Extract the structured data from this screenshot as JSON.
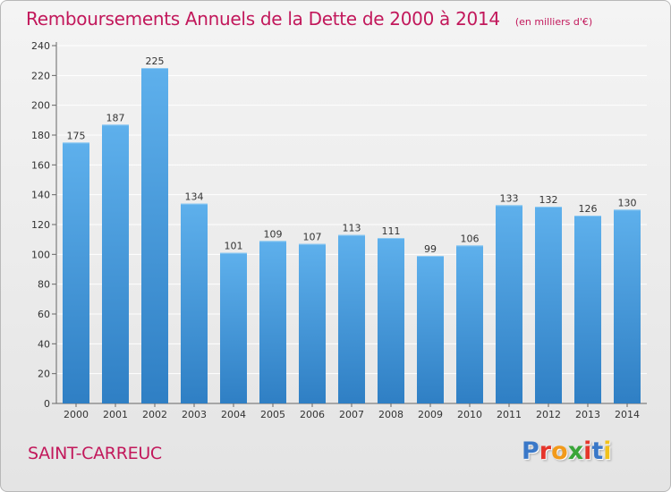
{
  "header": {
    "title": "Remboursements Annuels de la Dette de 2000 à 2014",
    "unit": "(en milliers d'€)"
  },
  "footer": {
    "commune": "SAINT-CARREUC",
    "logo_letters": [
      "P",
      "r",
      "o",
      "x",
      "i",
      "t",
      "i"
    ],
    "logo_colors": [
      "#3a78c8",
      "#e5352b",
      "#f29a1a",
      "#3aa639",
      "#e5352b",
      "#3a78c8",
      "#f2c21a"
    ]
  },
  "colors": {
    "title": "#c2185b",
    "bar_light": "#5eb0ec",
    "bar_dark": "#2f7fc4",
    "grid": "#ffffff"
  },
  "chart_data": {
    "type": "bar",
    "title": "Remboursements Annuels de la Dette de 2000 à 2014",
    "xlabel": "",
    "ylabel": "",
    "categories": [
      "2000",
      "2001",
      "2002",
      "2003",
      "2004",
      "2005",
      "2006",
      "2007",
      "2008",
      "2009",
      "2010",
      "2011",
      "2012",
      "2013",
      "2014"
    ],
    "values": [
      175,
      187,
      225,
      134,
      101,
      109,
      107,
      113,
      111,
      99,
      106,
      133,
      132,
      126,
      130
    ],
    "ylim": [
      0,
      240
    ],
    "yticks": [
      0,
      20,
      40,
      60,
      80,
      100,
      120,
      140,
      160,
      180,
      200,
      220,
      240
    ],
    "grid": true,
    "legend": "none"
  }
}
